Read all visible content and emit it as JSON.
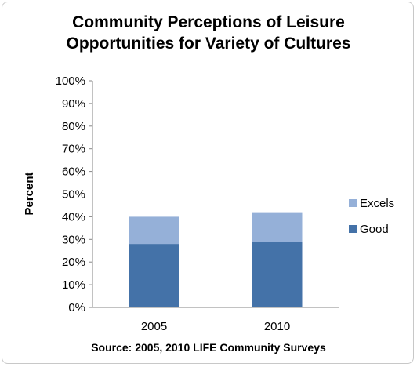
{
  "chart_data": {
    "type": "bar",
    "stacked": true,
    "title_lines": [
      "Community Perceptions of Leisure",
      "Opportunities for Variety of Cultures"
    ],
    "ylabel": "Percent",
    "xlabel": "",
    "categories": [
      "2005",
      "2010"
    ],
    "y_ticks": [
      "0%",
      "10%",
      "20%",
      "30%",
      "40%",
      "50%",
      "60%",
      "70%",
      "80%",
      "90%",
      "100%"
    ],
    "ylim": [
      0,
      100
    ],
    "series": [
      {
        "name": "Good",
        "values": [
          28,
          29
        ],
        "color": "#4472a8"
      },
      {
        "name": "Excels",
        "values": [
          12,
          13
        ],
        "color": "#95b0d8"
      }
    ],
    "legend_position": "right",
    "grid": false,
    "source": "Source: 2005, 2010 LIFE Community Surveys"
  }
}
